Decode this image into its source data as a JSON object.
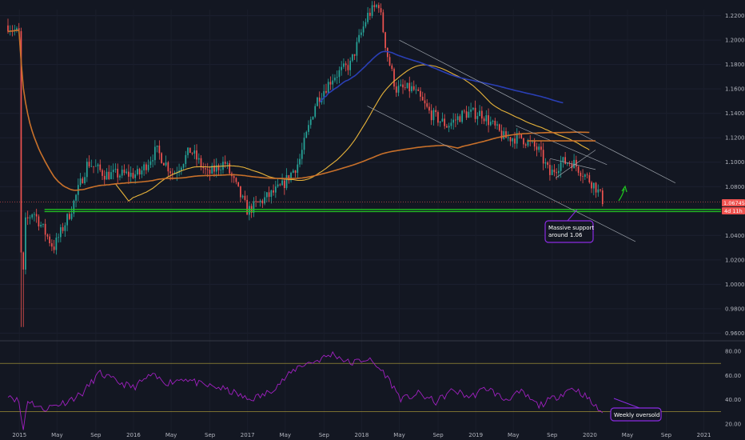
{
  "colors": {
    "background": "#131722",
    "up_candle": "#26a69a",
    "down_candle": "#ef5350",
    "ma_fast": "#e7b33a",
    "ma_slow": "#c8702a",
    "avwap": "#2a3fb5",
    "support": "#20c020",
    "channel": "#9aa0a8",
    "rsi": "#a020c0",
    "annotation_box": "#8a2be2",
    "price_tag": "#ef5350"
  },
  "chart_data": [
    {
      "type": "candlestick",
      "pair_visible": false,
      "x_ticks": [
        "2015",
        "May",
        "Sep",
        "2016",
        "May",
        "Sep",
        "2017",
        "May",
        "Sep",
        "2018",
        "May",
        "Sep",
        "2019",
        "May",
        "Sep",
        "2020",
        "May",
        "Sep",
        "2021"
      ],
      "y_ticks": [
        "1.22000",
        "1.20000",
        "1.18000",
        "1.16000",
        "1.14000",
        "1.12000",
        "1.10000",
        "1.08000",
        "1.06000",
        "1.04000",
        "1.02000",
        "1.00000",
        "0.98000",
        "0.96000"
      ],
      "ylim": [
        0.955,
        1.225
      ],
      "current_price": "1.06745",
      "countdown": "4d 11h",
      "close_path": [
        [
          2014.9,
          1.212
        ],
        [
          2015.0,
          1.205
        ],
        [
          2015.02,
          0.97
        ],
        [
          2015.05,
          1.05
        ],
        [
          2015.12,
          1.06
        ],
        [
          2015.3,
          1.03
        ],
        [
          2015.45,
          1.06
        ],
        [
          2015.6,
          1.1
        ],
        [
          2015.75,
          1.09
        ],
        [
          2015.9,
          1.09
        ],
        [
          2016.05,
          1.09
        ],
        [
          2016.2,
          1.11
        ],
        [
          2016.35,
          1.09
        ],
        [
          2016.5,
          1.11
        ],
        [
          2016.65,
          1.09
        ],
        [
          2016.8,
          1.1
        ],
        [
          2016.9,
          1.08
        ],
        [
          2017.0,
          1.06
        ],
        [
          2017.15,
          1.07
        ],
        [
          2017.3,
          1.08
        ],
        [
          2017.45,
          1.1
        ],
        [
          2017.6,
          1.15
        ],
        [
          2017.75,
          1.17
        ],
        [
          2017.9,
          1.18
        ],
        [
          2018.05,
          1.22
        ],
        [
          2018.15,
          1.23
        ],
        [
          2018.22,
          1.19
        ],
        [
          2018.3,
          1.16
        ],
        [
          2018.45,
          1.16
        ],
        [
          2018.6,
          1.14
        ],
        [
          2018.75,
          1.13
        ],
        [
          2018.9,
          1.14
        ],
        [
          2019.05,
          1.14
        ],
        [
          2019.15,
          1.13
        ],
        [
          2019.25,
          1.12
        ],
        [
          2019.4,
          1.12
        ],
        [
          2019.55,
          1.11
        ],
        [
          2019.65,
          1.09
        ],
        [
          2019.75,
          1.1
        ],
        [
          2019.85,
          1.1
        ],
        [
          2019.95,
          1.09
        ],
        [
          2020.05,
          1.08
        ],
        [
          2020.12,
          1.0675
        ]
      ],
      "annotations": {
        "support_note": "Massive support around 1.06",
        "support_note_line1": "Massive support",
        "support_note_line2": "around 1.06"
      }
    },
    {
      "type": "line",
      "indicator": "RSI",
      "y_ticks": [
        "80.00",
        "60.00",
        "40.00",
        "20.00"
      ],
      "ylim": [
        10,
        86
      ],
      "levels": [
        70,
        30
      ],
      "values": [
        [
          2014.9,
          45
        ],
        [
          2015.0,
          38
        ],
        [
          2015.03,
          12
        ],
        [
          2015.07,
          40
        ],
        [
          2015.2,
          32
        ],
        [
          2015.4,
          38
        ],
        [
          2015.55,
          45
        ],
        [
          2015.7,
          62
        ],
        [
          2015.85,
          55
        ],
        [
          2016.0,
          50
        ],
        [
          2016.15,
          60
        ],
        [
          2016.3,
          54
        ],
        [
          2016.45,
          58
        ],
        [
          2016.6,
          52
        ],
        [
          2016.75,
          50
        ],
        [
          2016.9,
          45
        ],
        [
          2017.0,
          40
        ],
        [
          2017.15,
          44
        ],
        [
          2017.3,
          55
        ],
        [
          2017.45,
          68
        ],
        [
          2017.6,
          72
        ],
        [
          2017.75,
          78
        ],
        [
          2017.9,
          70
        ],
        [
          2018.05,
          74
        ],
        [
          2018.2,
          62
        ],
        [
          2018.35,
          40
        ],
        [
          2018.5,
          45
        ],
        [
          2018.65,
          38
        ],
        [
          2018.8,
          48
        ],
        [
          2018.95,
          42
        ],
        [
          2019.1,
          50
        ],
        [
          2019.25,
          40
        ],
        [
          2019.4,
          46
        ],
        [
          2019.55,
          35
        ],
        [
          2019.7,
          42
        ],
        [
          2019.85,
          50
        ],
        [
          2019.95,
          44
        ],
        [
          2020.05,
          34
        ],
        [
          2020.12,
          29
        ]
      ],
      "annotations": {
        "oversold_note": "Weekly oversold"
      }
    }
  ]
}
